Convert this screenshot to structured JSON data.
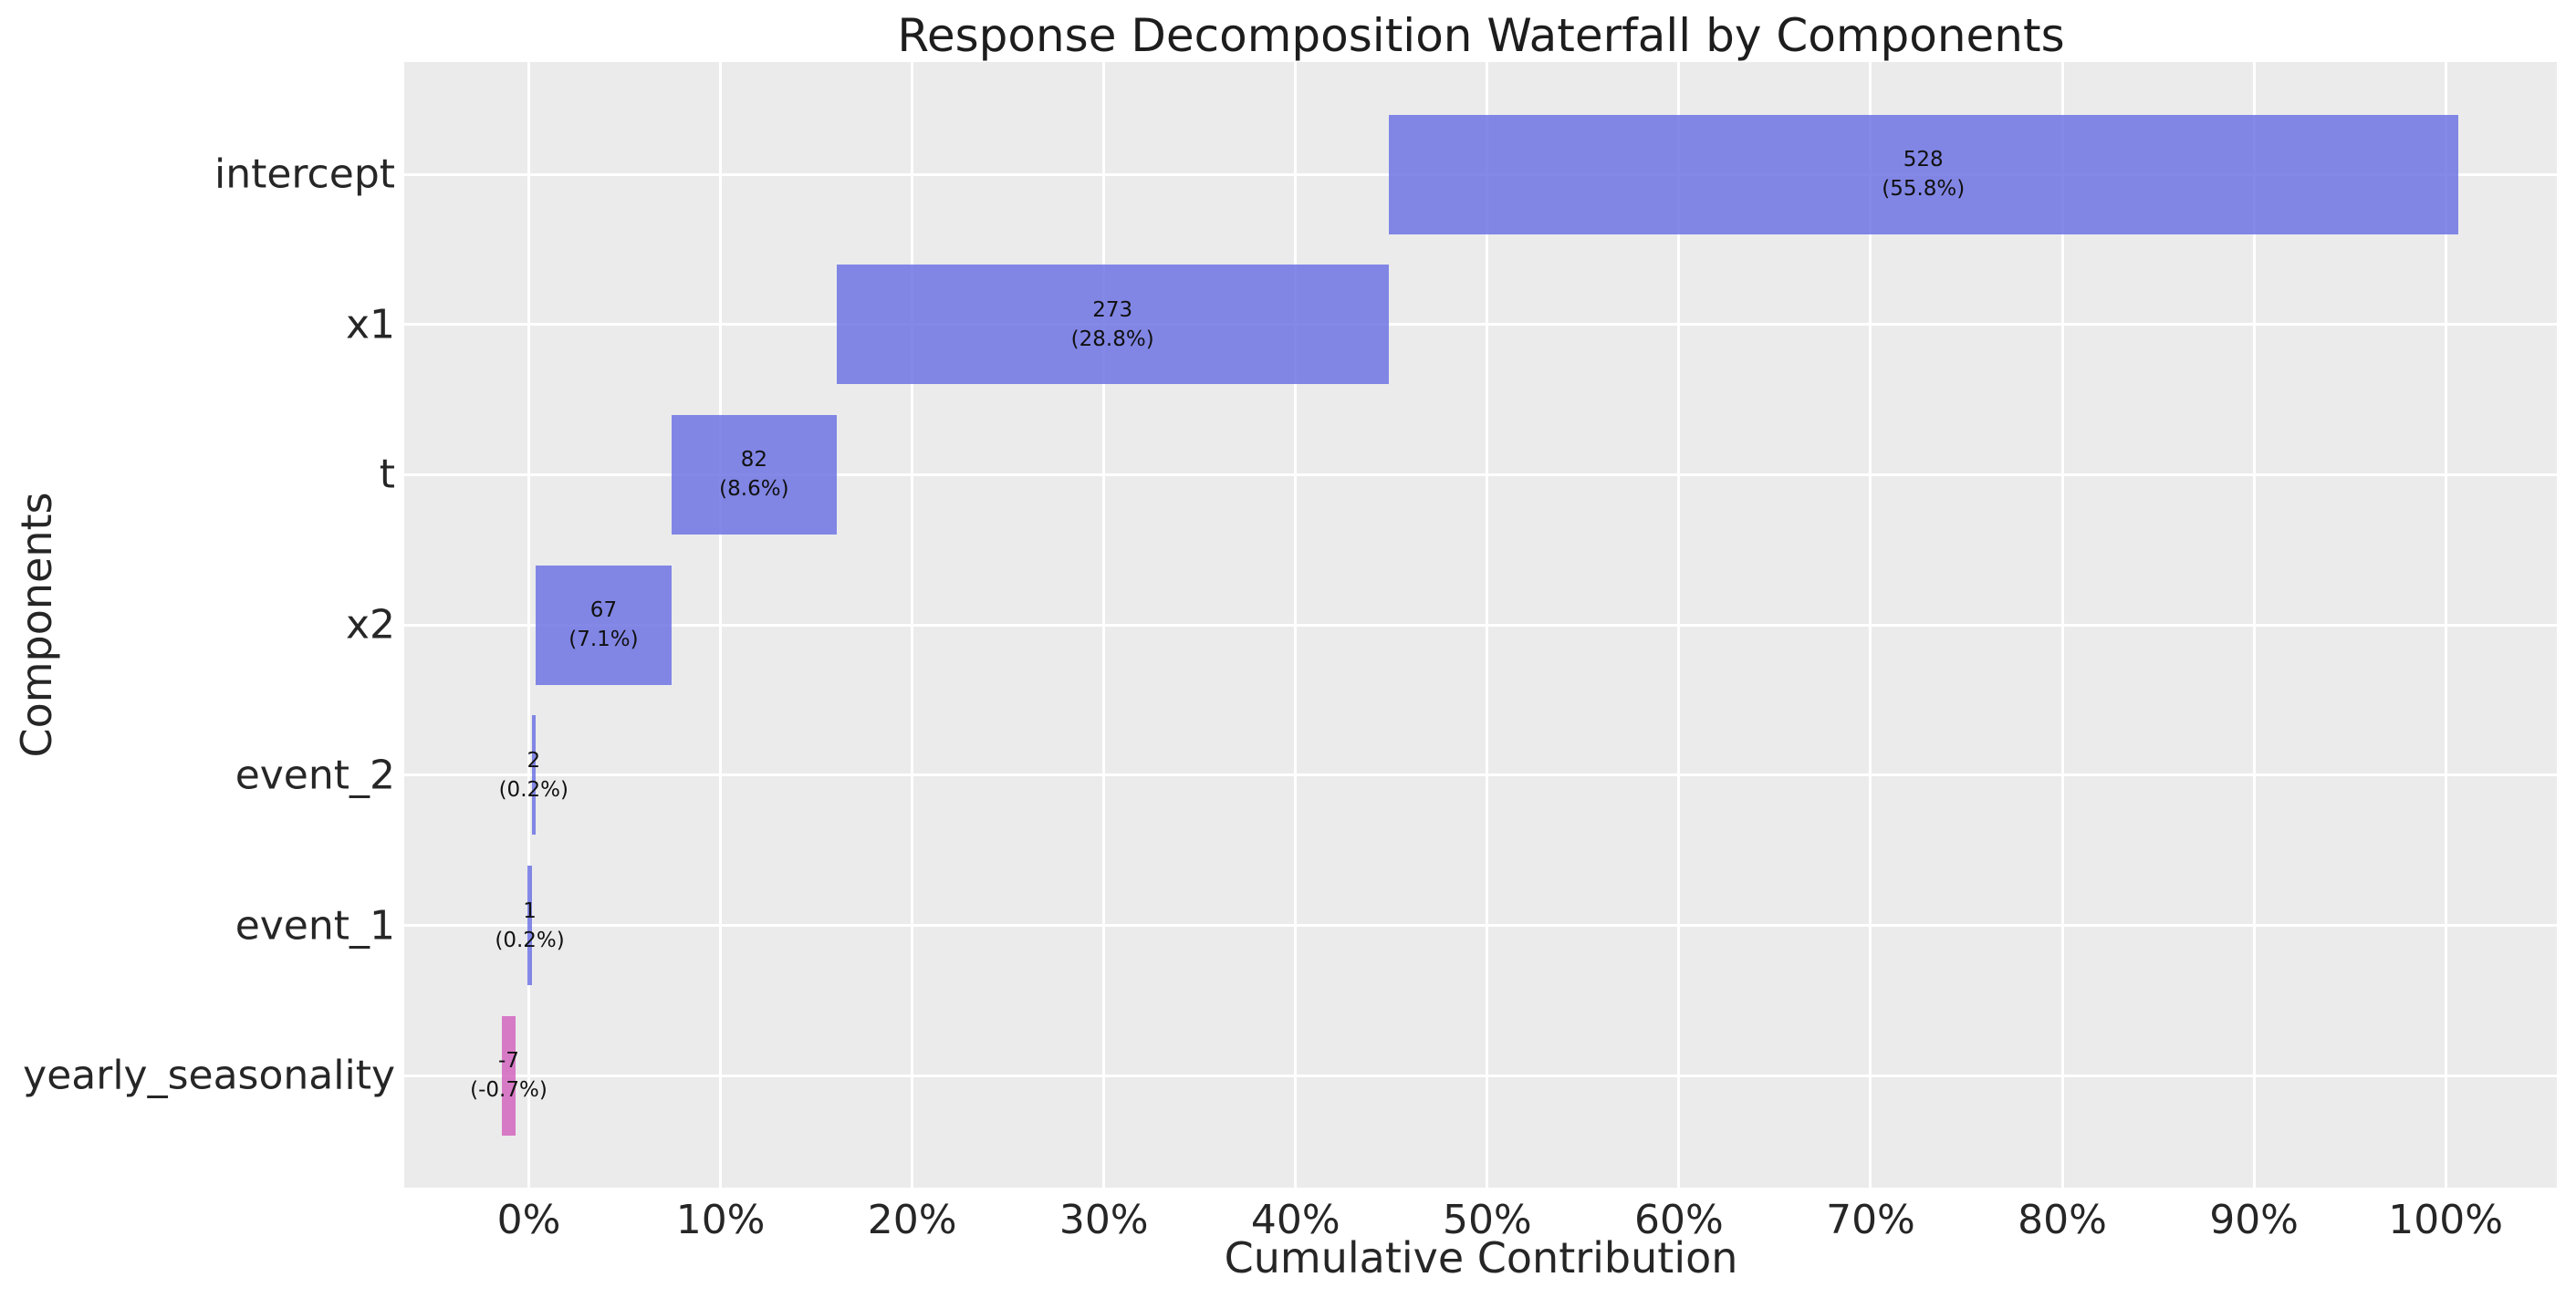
{
  "figure": {
    "background": "#ffffff"
  },
  "chart_data": {
    "type": "bar",
    "subtype": "waterfall",
    "orientation": "horizontal",
    "title": "Response Decomposition Waterfall by Components",
    "xlabel": "Cumulative Contribution",
    "ylabel": "Components",
    "grid": true,
    "legend": false,
    "plot_background": "#ebebeb",
    "grid_color": "#ffffff",
    "xlim_pct": [
      -6.5,
      105.8
    ],
    "x_ticks": [
      {
        "value": 0,
        "label": "0%"
      },
      {
        "value": 10,
        "label": "10%"
      },
      {
        "value": 20,
        "label": "20%"
      },
      {
        "value": 30,
        "label": "30%"
      },
      {
        "value": 40,
        "label": "40%"
      },
      {
        "value": 50,
        "label": "50%"
      },
      {
        "value": 60,
        "label": "60%"
      },
      {
        "value": 70,
        "label": "70%"
      },
      {
        "value": 80,
        "label": "80%"
      },
      {
        "value": 90,
        "label": "90%"
      },
      {
        "value": 100,
        "label": "100%"
      }
    ],
    "categories": [
      "intercept",
      "x1",
      "t",
      "x2",
      "event_2",
      "event_1",
      "yearly_seasonality"
    ],
    "bars": [
      {
        "component": "intercept",
        "value": 528,
        "pct": 55.8,
        "label_value": "528",
        "label_pct": "(55.8%)",
        "start_pct": 44.85,
        "end_pct": 100.65,
        "sign": "positive"
      },
      {
        "component": "x1",
        "value": 273,
        "pct": 28.8,
        "label_value": "273",
        "label_pct": "(28.8%)",
        "start_pct": 16.05,
        "end_pct": 44.85,
        "sign": "positive"
      },
      {
        "component": "t",
        "value": 82,
        "pct": 8.6,
        "label_value": "82",
        "label_pct": "(8.6%)",
        "start_pct": 7.45,
        "end_pct": 16.05,
        "sign": "positive"
      },
      {
        "component": "x2",
        "value": 67,
        "pct": 7.1,
        "label_value": "67",
        "label_pct": "(7.1%)",
        "start_pct": 0.35,
        "end_pct": 7.45,
        "sign": "positive"
      },
      {
        "component": "event_2",
        "value": 2,
        "pct": 0.2,
        "label_value": "2",
        "label_pct": "(0.2%)",
        "start_pct": 0.15,
        "end_pct": 0.35,
        "sign": "positive"
      },
      {
        "component": "event_1",
        "value": 1,
        "pct": 0.2,
        "label_value": "1",
        "label_pct": "(0.2%)",
        "start_pct": -0.05,
        "end_pct": 0.15,
        "sign": "positive"
      },
      {
        "component": "yearly_seasonality",
        "value": -7,
        "pct": -0.7,
        "label_value": "-7",
        "label_pct": "(-0.7%)",
        "start_pct": -1.4,
        "end_pct": -0.7,
        "sign": "negative"
      }
    ],
    "colors": {
      "positive_bar": "#6f74e4",
      "negative_bar": "#d466c0",
      "bar_opacity": 0.85,
      "text": "#262626",
      "annotation_text": "#111111"
    }
  }
}
